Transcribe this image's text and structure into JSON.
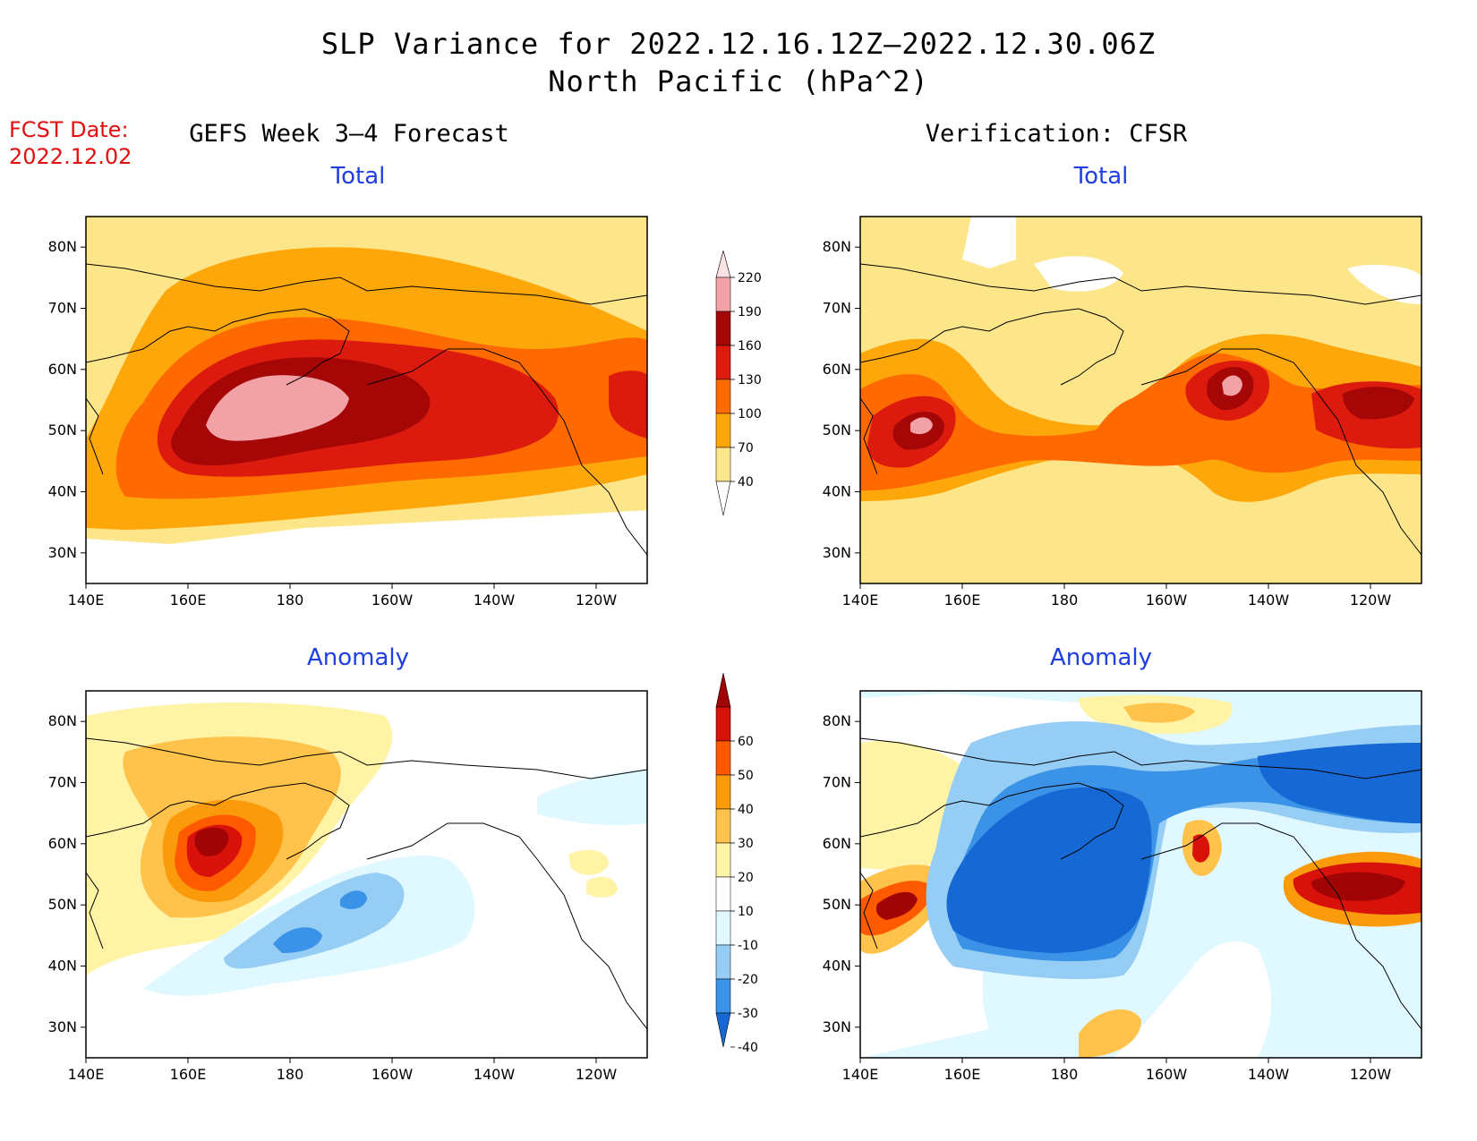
{
  "header": {
    "title_line1": "SLP Variance for 2022.12.16.12Z—2022.12.30.06Z",
    "title_line2": "North Pacific (hPa^2)"
  },
  "fcst": {
    "label": "FCST Date:",
    "date": "2022.12.02"
  },
  "columns": {
    "left": "GEFS Week 3–4 Forecast",
    "right": "Verification: CFSR"
  },
  "panels": {
    "total_label": "Total",
    "anomaly_label": "Anomaly"
  },
  "axes": {
    "lat_ticks": [
      "80N",
      "70N",
      "60N",
      "50N",
      "40N",
      "30N"
    ],
    "lat_values": [
      80,
      70,
      60,
      50,
      40,
      30
    ],
    "lon_ticks": [
      "140E",
      "160E",
      "180",
      "160W",
      "140W",
      "120W"
    ],
    "lon_values": [
      140,
      160,
      180,
      200,
      220,
      240
    ],
    "lat_range": [
      25,
      85
    ],
    "lon_range": [
      140,
      250
    ]
  },
  "colorbars": {
    "total": {
      "levels": [
        "40",
        "70",
        "100",
        "130",
        "160",
        "190",
        "220"
      ],
      "colors": [
        "#fde68a",
        "#fda70a",
        "#ff6a00",
        "#dd1a0e",
        "#a50606",
        "#f2a2a6",
        "#fde2e4"
      ]
    },
    "anomaly": {
      "levels": [
        "-40",
        "-30",
        "-20",
        "-10",
        "10",
        "20",
        "30",
        "40",
        "50",
        "60"
      ],
      "colors": [
        "#1668d4",
        "#3a93e6",
        "#96cdf5",
        "#e0f8ff",
        "#ffffff",
        "#fff3a6",
        "#ffc24a",
        "#fb9a0a",
        "#ff5a00",
        "#d8110b",
        "#a00404"
      ]
    }
  }
}
